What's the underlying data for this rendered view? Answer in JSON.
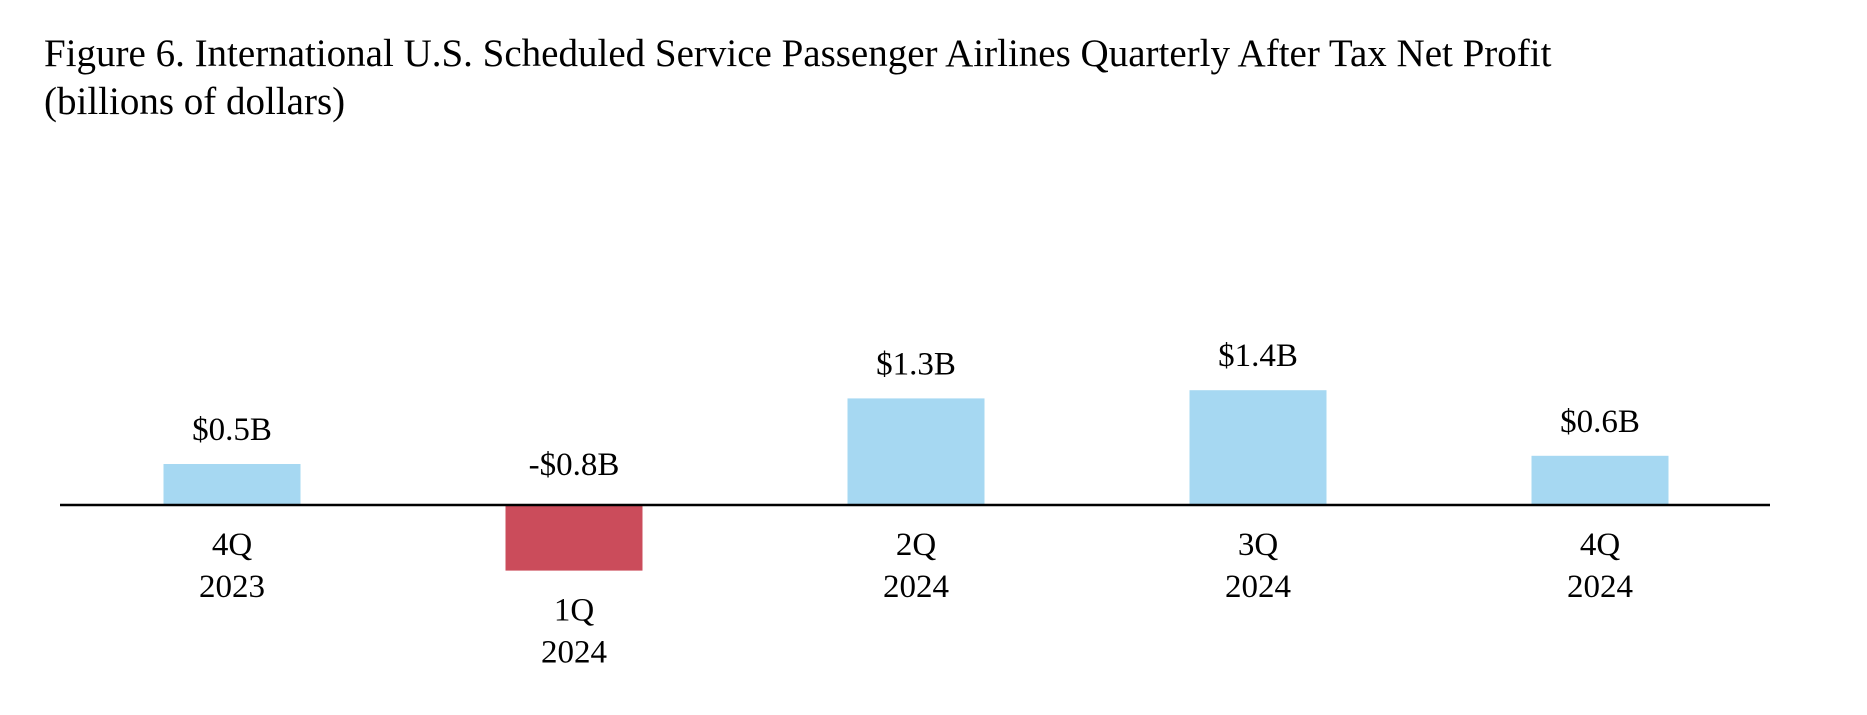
{
  "chart_data": {
    "type": "bar",
    "title_line1": "Figure 6. International U.S. Scheduled Service Passenger Airlines Quarterly After Tax Net Profit",
    "title_line2": "(billions of dollars)",
    "categories": [
      {
        "quarter": "4Q",
        "year": "2023"
      },
      {
        "quarter": "1Q",
        "year": "2024"
      },
      {
        "quarter": "2Q",
        "year": "2024"
      },
      {
        "quarter": "3Q",
        "year": "2024"
      },
      {
        "quarter": "4Q",
        "year": "2024"
      }
    ],
    "values": [
      0.5,
      -0.8,
      1.3,
      1.4,
      0.6
    ],
    "data_labels": [
      "$0.5B",
      "-$0.8B",
      "$1.3B",
      "$1.4B",
      "$0.6B"
    ],
    "xlabel": "",
    "ylabel": "",
    "grid": false,
    "colors": {
      "positive": "#a6d8f2",
      "negative": "#cb4c5b",
      "axis": "#000000"
    }
  }
}
